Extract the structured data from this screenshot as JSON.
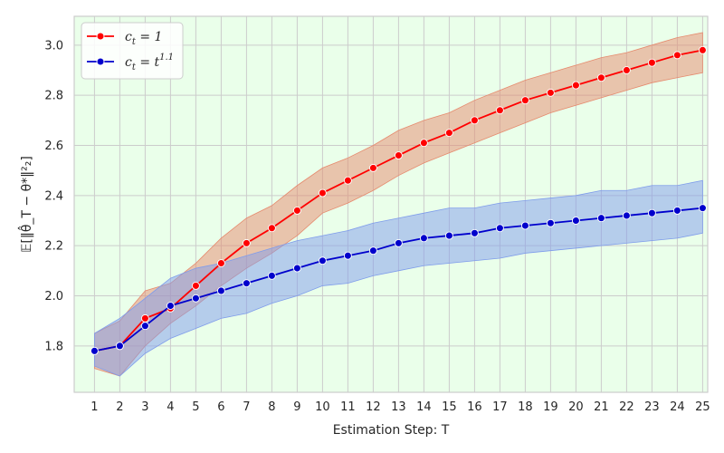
{
  "chart_data": {
    "type": "line",
    "x": [
      1,
      2,
      3,
      4,
      5,
      6,
      7,
      8,
      9,
      10,
      11,
      12,
      13,
      14,
      15,
      16,
      17,
      18,
      19,
      20,
      21,
      22,
      23,
      24,
      25
    ],
    "xticks": [
      "1",
      "2",
      "3",
      "4",
      "5",
      "6",
      "7",
      "8",
      "9",
      "10",
      "11",
      "12",
      "13",
      "14",
      "15",
      "16",
      "17",
      "18",
      "19",
      "20",
      "21",
      "22",
      "23",
      "24",
      "25"
    ],
    "yticks": [
      "1.8",
      "2.0",
      "2.2",
      "2.4",
      "2.6",
      "2.8",
      "3.0"
    ],
    "xlabel": "Estimation Step: T",
    "ylabel": "𝔼[‖θ̂_T − θ*‖²₂]",
    "ylim": [
      1.615,
      3.115
    ],
    "xlim": [
      0.2,
      25.2
    ],
    "grid": true,
    "background_color": "#eaffea",
    "legend_position": "top-left",
    "series": [
      {
        "name": "c_t = 1",
        "legend": {
          "base": "c",
          "sub": "t",
          "rest": " = 1",
          "sup": ""
        },
        "color": "#ff0000",
        "fill_color": "#e68a6e",
        "values": [
          1.78,
          1.8,
          1.91,
          1.95,
          2.04,
          2.13,
          2.21,
          2.27,
          2.34,
          2.41,
          2.46,
          2.51,
          2.56,
          2.61,
          2.65,
          2.7,
          2.74,
          2.78,
          2.81,
          2.84,
          2.87,
          2.9,
          2.93,
          2.96,
          2.98
        ],
        "lower": [
          1.71,
          1.68,
          1.8,
          1.89,
          1.96,
          2.04,
          2.11,
          2.17,
          2.24,
          2.33,
          2.37,
          2.42,
          2.48,
          2.53,
          2.57,
          2.61,
          2.65,
          2.69,
          2.73,
          2.76,
          2.79,
          2.82,
          2.85,
          2.87,
          2.89
        ],
        "upper": [
          1.85,
          1.9,
          2.02,
          2.05,
          2.13,
          2.23,
          2.31,
          2.36,
          2.44,
          2.51,
          2.55,
          2.6,
          2.66,
          2.7,
          2.73,
          2.78,
          2.82,
          2.86,
          2.89,
          2.92,
          2.95,
          2.97,
          3.0,
          3.03,
          3.05
        ]
      },
      {
        "name": "c_t = t^1.1",
        "legend": {
          "base": "c",
          "sub": "t",
          "rest": " = t",
          "sup": "1.1"
        },
        "color": "#0000cc",
        "fill_color": "#7f9ceb",
        "values": [
          1.78,
          1.8,
          1.88,
          1.96,
          1.99,
          2.02,
          2.05,
          2.08,
          2.11,
          2.14,
          2.16,
          2.18,
          2.21,
          2.23,
          2.24,
          2.25,
          2.27,
          2.28,
          2.29,
          2.3,
          2.31,
          2.32,
          2.33,
          2.34,
          2.35
        ],
        "lower": [
          1.72,
          1.68,
          1.77,
          1.83,
          1.87,
          1.91,
          1.93,
          1.97,
          2.0,
          2.04,
          2.05,
          2.08,
          2.1,
          2.12,
          2.13,
          2.14,
          2.15,
          2.17,
          2.18,
          2.19,
          2.2,
          2.21,
          2.22,
          2.23,
          2.25
        ],
        "upper": [
          1.85,
          1.91,
          1.99,
          2.07,
          2.11,
          2.13,
          2.16,
          2.19,
          2.22,
          2.24,
          2.26,
          2.29,
          2.31,
          2.33,
          2.35,
          2.35,
          2.37,
          2.38,
          2.39,
          2.4,
          2.42,
          2.42,
          2.44,
          2.44,
          2.46
        ]
      }
    ]
  }
}
